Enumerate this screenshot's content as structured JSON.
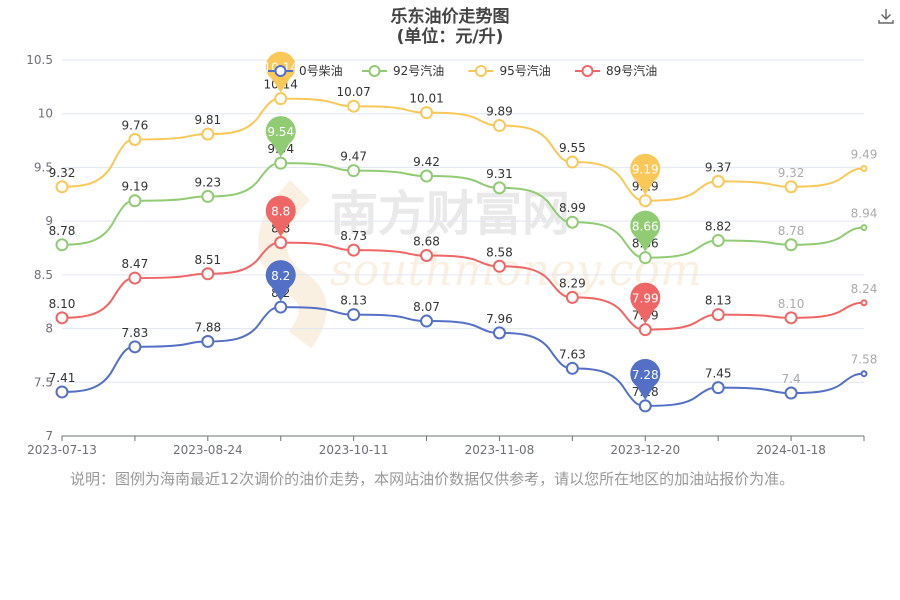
{
  "header": {
    "title": "乐东油价走势图",
    "subtitle": "(单位：元/升)"
  },
  "toolbar": {
    "download_icon": "download-icon"
  },
  "note": "说明：图例为海南最近12次调价的油价走势，本网站油价数据仅供参考，请以您所在地区的加油站报价为准。",
  "watermark": {
    "text": "南方财富网",
    "url_text": "southmoney.com",
    "type": "logo"
  },
  "chart_data": {
    "type": "line",
    "title": "乐东油价走势图",
    "subtitle": "(单位：元/升)",
    "xlabel": "",
    "ylabel": "",
    "ylim": [
      7,
      10.5
    ],
    "yticks": [
      "7",
      "7.5",
      "8",
      "8.5",
      "9",
      "9.5",
      "10",
      "10.5"
    ],
    "x": [
      "2023-07-13",
      "",
      "2023-08-24",
      "",
      "2023-10-11",
      "",
      "2023-11-08",
      "",
      "2023-12-20",
      "",
      "2024-01-18",
      ""
    ],
    "xtick_labels": [
      "2023-07-13",
      "2023-08-24",
      "2023-10-11",
      "2023-11-08",
      "2023-12-20",
      "2024-01-18"
    ],
    "grid": true,
    "legend_position": "top",
    "series": [
      {
        "name": "0号柴油",
        "color": "#5470c6",
        "values": [
          7.41,
          7.83,
          7.88,
          8.2,
          8.13,
          8.07,
          7.96,
          7.63,
          7.28,
          7.45,
          7.4,
          7.58
        ],
        "labels": [
          "7.41",
          "7.83",
          "7.88",
          "8.2",
          "8.13",
          "8.07",
          "7.96",
          "7.63",
          "7.28",
          "7.45",
          "7.4",
          "7.58"
        ],
        "max_pin": "8.2",
        "min_pin": "7.28"
      },
      {
        "name": "92号汽油",
        "color": "#91cc75",
        "values": [
          8.78,
          9.19,
          9.23,
          9.54,
          9.47,
          9.42,
          9.31,
          8.99,
          8.66,
          8.82,
          8.78,
          8.94
        ],
        "labels": [
          "8.78",
          "9.19",
          "9.23",
          "9.54",
          "9.47",
          "9.42",
          "9.31",
          "8.99",
          "8.66",
          "8.82",
          "8.78",
          "8.94"
        ],
        "max_pin": "9.54",
        "min_pin": "8.66"
      },
      {
        "name": "95号汽油",
        "color": "#fac858",
        "values": [
          9.32,
          9.76,
          9.81,
          10.14,
          10.07,
          10.01,
          9.89,
          9.55,
          9.19,
          9.37,
          9.32,
          9.49
        ],
        "labels": [
          "9.32",
          "9.76",
          "9.81",
          "10.14",
          "10.07",
          "10.01",
          "9.89",
          "9.55",
          "9.19",
          "9.37",
          "9.32",
          "9.49"
        ],
        "max_pin": "10.14",
        "min_pin": "9.19"
      },
      {
        "name": "89号汽油",
        "color": "#ee6666",
        "values": [
          8.1,
          8.47,
          8.51,
          8.8,
          8.73,
          8.68,
          8.58,
          8.29,
          7.99,
          8.13,
          8.1,
          8.24
        ],
        "labels": [
          "8.10",
          "8.47",
          "8.51",
          "8.8",
          "8.73",
          "8.68",
          "8.58",
          "8.29",
          "7.99",
          "8.13",
          "8.10",
          "8.24"
        ],
        "max_pin": "8.8",
        "min_pin": "7.99"
      }
    ]
  }
}
